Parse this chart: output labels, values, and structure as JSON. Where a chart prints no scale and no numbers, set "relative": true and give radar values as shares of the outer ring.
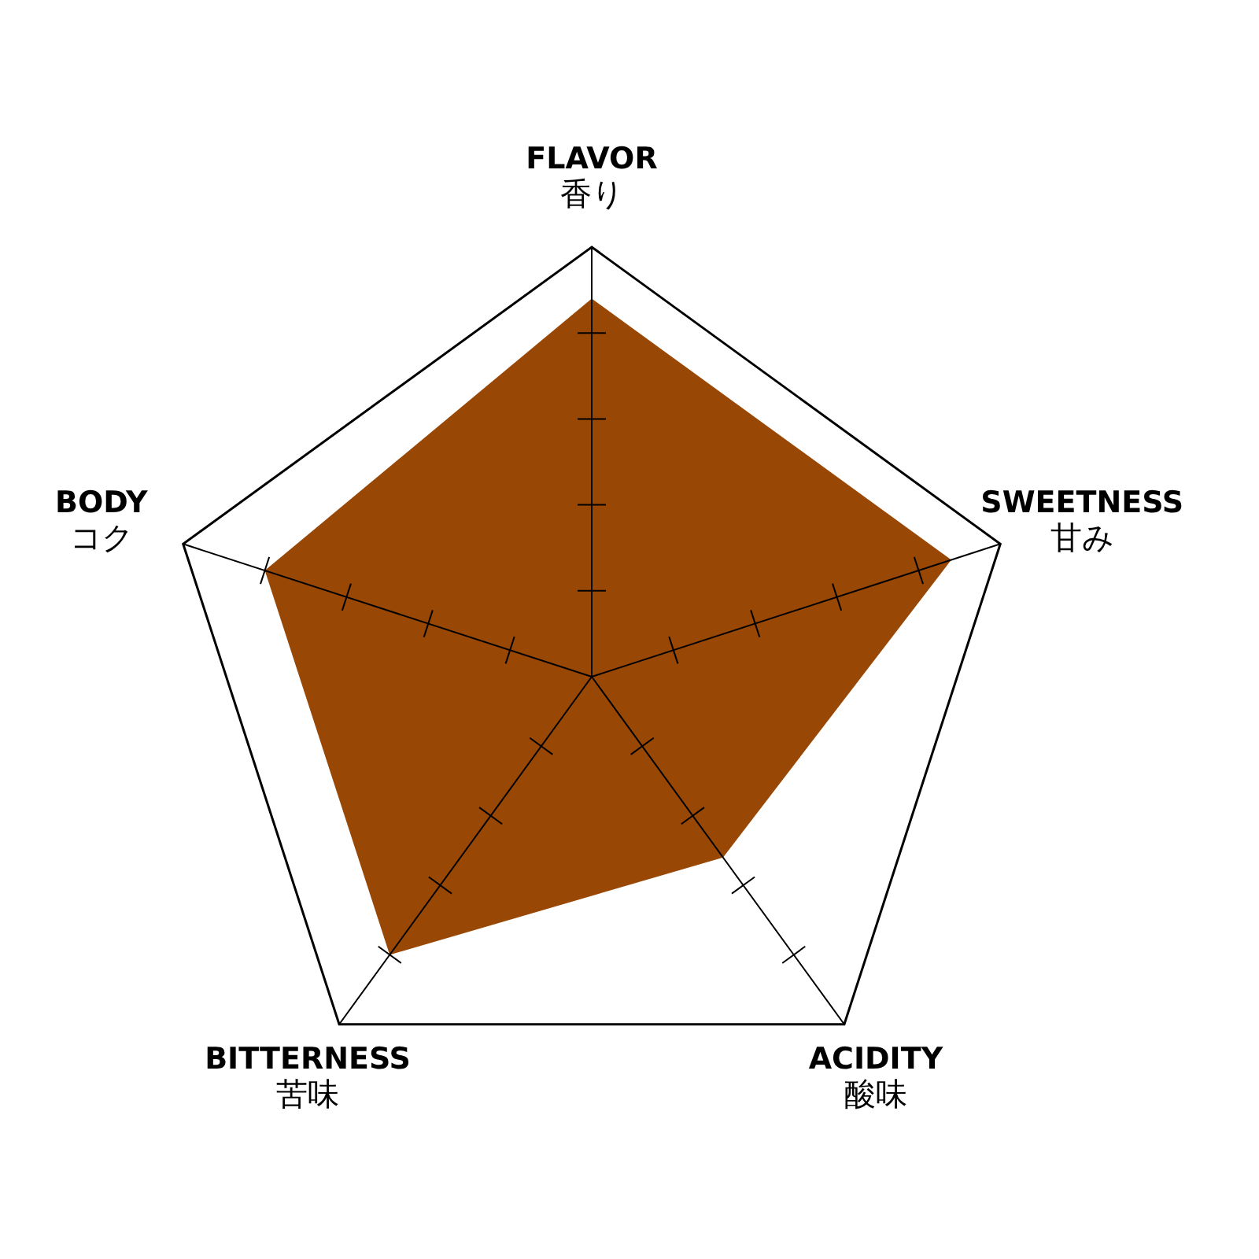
{
  "chart_data": {
    "type": "radar",
    "relative": true,
    "categories": [
      "FLAVOR\n香り",
      "SWEETNESS\n甘み",
      "ACIDITY\n酸味",
      "BITTERNESS\n苦味",
      "BODY\nコク"
    ],
    "series": [
      {
        "color": "#994705",
        "values": [
          0.88,
          0.88,
          0.52,
          0.8,
          0.8
        ]
      }
    ]
  }
}
